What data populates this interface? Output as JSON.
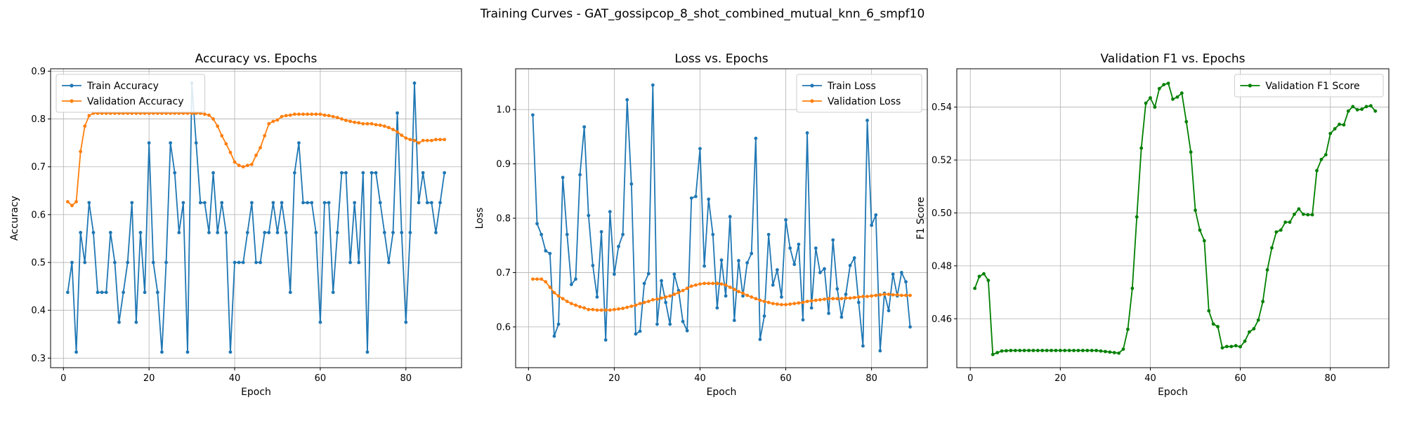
{
  "figure": {
    "suptitle": "Training Curves - GAT_gossipcop_8_shot_combined_mutual_knn_6_smpf10"
  },
  "colors": {
    "blue": "#1f77b4",
    "orange": "#ff7f0e",
    "green": "#008000",
    "grid": "#b0b0b0"
  },
  "chart_data": [
    {
      "type": "line",
      "title": "Accuracy vs. Epochs",
      "xlabel": "Epoch",
      "ylabel": "Accuracy",
      "xlim": [
        -3,
        93
      ],
      "ylim": [
        0.28,
        0.905
      ],
      "xticks": [
        0,
        20,
        40,
        60,
        80
      ],
      "yticks": [
        0.3,
        0.4,
        0.5,
        0.6,
        0.7,
        0.8,
        0.9
      ],
      "ytick_labels": [
        "0.3",
        "0.4",
        "0.5",
        "0.6",
        "0.7",
        "0.8",
        "0.9"
      ],
      "grid": true,
      "legend": "upper left",
      "x_start": 1,
      "series": [
        {
          "name": "Train Accuracy",
          "color": "#1f77b4",
          "values": [
            0.4375,
            0.5,
            0.3125,
            0.5625,
            0.5,
            0.625,
            0.5625,
            0.4375,
            0.4375,
            0.4375,
            0.5625,
            0.5,
            0.375,
            0.4375,
            0.5,
            0.625,
            0.375,
            0.5625,
            0.4375,
            0.75,
            0.5,
            0.4375,
            0.3125,
            0.5,
            0.75,
            0.6875,
            0.5625,
            0.625,
            0.3125,
            0.875,
            0.75,
            0.625,
            0.625,
            0.5625,
            0.6875,
            0.5625,
            0.625,
            0.5625,
            0.3125,
            0.5,
            0.5,
            0.5,
            0.5625,
            0.625,
            0.5,
            0.5,
            0.5625,
            0.5625,
            0.625,
            0.5625,
            0.625,
            0.5625,
            0.4375,
            0.6875,
            0.75,
            0.625,
            0.625,
            0.625,
            0.5625,
            0.375,
            0.625,
            0.625,
            0.4375,
            0.5625,
            0.6875,
            0.6875,
            0.5,
            0.625,
            0.5,
            0.6875,
            0.3125,
            0.6875,
            0.6875,
            0.625,
            0.5625,
            0.5,
            0.5625,
            0.8125,
            0.5625,
            0.375,
            0.5625,
            0.875,
            0.625,
            0.6875,
            0.625,
            0.625,
            0.5625,
            0.625,
            0.6875
          ]
        },
        {
          "name": "Validation Accuracy",
          "color": "#ff7f0e",
          "values": [
            0.627,
            0.619,
            0.627,
            0.732,
            0.785,
            0.807,
            0.812,
            0.812,
            0.812,
            0.812,
            0.812,
            0.812,
            0.812,
            0.812,
            0.812,
            0.812,
            0.812,
            0.812,
            0.812,
            0.812,
            0.812,
            0.812,
            0.812,
            0.812,
            0.812,
            0.812,
            0.812,
            0.812,
            0.812,
            0.812,
            0.812,
            0.812,
            0.81,
            0.808,
            0.8,
            0.785,
            0.765,
            0.748,
            0.73,
            0.71,
            0.703,
            0.7,
            0.703,
            0.705,
            0.724,
            0.74,
            0.765,
            0.79,
            0.795,
            0.798,
            0.805,
            0.807,
            0.808,
            0.81,
            0.81,
            0.81,
            0.81,
            0.81,
            0.81,
            0.81,
            0.808,
            0.807,
            0.805,
            0.803,
            0.8,
            0.797,
            0.795,
            0.793,
            0.792,
            0.79,
            0.79,
            0.79,
            0.788,
            0.787,
            0.785,
            0.782,
            0.778,
            0.773,
            0.766,
            0.76,
            0.757,
            0.755,
            0.75,
            0.755,
            0.755,
            0.755,
            0.757,
            0.757,
            0.757
          ]
        }
      ]
    },
    {
      "type": "line",
      "title": "Loss vs. Epochs",
      "xlabel": "Epoch",
      "ylabel": "Loss",
      "xlim": [
        -3,
        93
      ],
      "ylim": [
        0.525,
        1.075
      ],
      "xticks": [
        0,
        20,
        40,
        60,
        80
      ],
      "yticks": [
        0.6,
        0.7,
        0.8,
        0.9,
        1.0
      ],
      "ytick_labels": [
        "0.6",
        "0.7",
        "0.8",
        "0.9",
        "1.0"
      ],
      "grid": true,
      "legend": "upper right",
      "x_start": 1,
      "series": [
        {
          "name": "Train Loss",
          "color": "#1f77b4",
          "values": [
            0.99,
            0.79,
            0.77,
            0.74,
            0.735,
            0.583,
            0.605,
            0.875,
            0.77,
            0.678,
            0.688,
            0.88,
            0.968,
            0.805,
            0.713,
            0.655,
            0.775,
            0.576,
            0.812,
            0.697,
            0.748,
            0.77,
            1.018,
            0.863,
            0.587,
            0.592,
            0.68,
            0.698,
            1.045,
            0.605,
            0.685,
            0.645,
            0.605,
            0.697,
            0.667,
            0.61,
            0.593,
            0.837,
            0.84,
            0.928,
            0.712,
            0.835,
            0.77,
            0.635,
            0.723,
            0.657,
            0.803,
            0.612,
            0.722,
            0.657,
            0.718,
            0.735,
            0.947,
            0.577,
            0.62,
            0.77,
            0.677,
            0.705,
            0.655,
            0.797,
            0.745,
            0.715,
            0.752,
            0.613,
            0.957,
            0.635,
            0.745,
            0.7,
            0.707,
            0.625,
            0.76,
            0.67,
            0.618,
            0.66,
            0.713,
            0.727,
            0.645,
            0.565,
            0.98,
            0.787,
            0.806,
            0.556,
            0.662,
            0.63,
            0.697,
            0.657,
            0.7,
            0.683,
            0.6
          ]
        },
        {
          "name": "Validation Loss",
          "color": "#ff7f0e",
          "values": [
            0.688,
            0.688,
            0.688,
            0.683,
            0.673,
            0.663,
            0.657,
            0.652,
            0.647,
            0.643,
            0.64,
            0.637,
            0.635,
            0.632,
            0.632,
            0.631,
            0.631,
            0.631,
            0.631,
            0.632,
            0.633,
            0.634,
            0.636,
            0.638,
            0.64,
            0.643,
            0.645,
            0.647,
            0.65,
            0.651,
            0.653,
            0.655,
            0.657,
            0.66,
            0.663,
            0.667,
            0.671,
            0.675,
            0.677,
            0.679,
            0.68,
            0.68,
            0.68,
            0.68,
            0.679,
            0.677,
            0.673,
            0.669,
            0.665,
            0.662,
            0.658,
            0.655,
            0.652,
            0.649,
            0.647,
            0.645,
            0.643,
            0.642,
            0.641,
            0.641,
            0.642,
            0.643,
            0.644,
            0.645,
            0.647,
            0.648,
            0.649,
            0.65,
            0.651,
            0.652,
            0.652,
            0.652,
            0.652,
            0.653,
            0.653,
            0.654,
            0.655,
            0.656,
            0.656,
            0.657,
            0.658,
            0.659,
            0.66,
            0.66,
            0.659,
            0.659,
            0.658,
            0.658,
            0.658
          ]
        }
      ]
    },
    {
      "type": "line",
      "title": "Validation F1 vs. Epochs",
      "xlabel": "Epoch",
      "ylabel": "F1 Score",
      "xlim": [
        -3,
        93
      ],
      "ylim": [
        0.4415,
        0.5545
      ],
      "xticks": [
        0,
        20,
        40,
        60,
        80
      ],
      "yticks": [
        0.46,
        0.48,
        0.5,
        0.52,
        0.54
      ],
      "ytick_labels": [
        "0.46",
        "0.48",
        "0.50",
        "0.52",
        "0.54"
      ],
      "grid": true,
      "legend": "upper right",
      "x_start": 1,
      "series": [
        {
          "name": "Validation F1 Score",
          "color": "#008000",
          "values": [
            0.4715,
            0.476,
            0.477,
            0.4745,
            0.4465,
            0.4472,
            0.4478,
            0.4479,
            0.448,
            0.448,
            0.448,
            0.448,
            0.448,
            0.448,
            0.448,
            0.448,
            0.448,
            0.448,
            0.448,
            0.448,
            0.448,
            0.448,
            0.448,
            0.448,
            0.448,
            0.448,
            0.448,
            0.448,
            0.4478,
            0.4476,
            0.4474,
            0.4472,
            0.447,
            0.4485,
            0.456,
            0.4715,
            0.4985,
            0.5245,
            0.5415,
            0.5435,
            0.54,
            0.547,
            0.5485,
            0.549,
            0.543,
            0.5438,
            0.5453,
            0.5345,
            0.523,
            0.501,
            0.4935,
            0.4895,
            0.463,
            0.458,
            0.457,
            0.449,
            0.4495,
            0.4495,
            0.4498,
            0.4494,
            0.4515,
            0.455,
            0.4562,
            0.4595,
            0.4665,
            0.4785,
            0.4868,
            0.4928,
            0.4935,
            0.4965,
            0.4965,
            0.4995,
            0.5015,
            0.4995,
            0.4993,
            0.4993,
            0.516,
            0.5202,
            0.522,
            0.53,
            0.5318,
            0.5335,
            0.5333,
            0.5385,
            0.5402,
            0.539,
            0.5392,
            0.5402,
            0.5405,
            0.5385
          ]
        }
      ]
    }
  ]
}
